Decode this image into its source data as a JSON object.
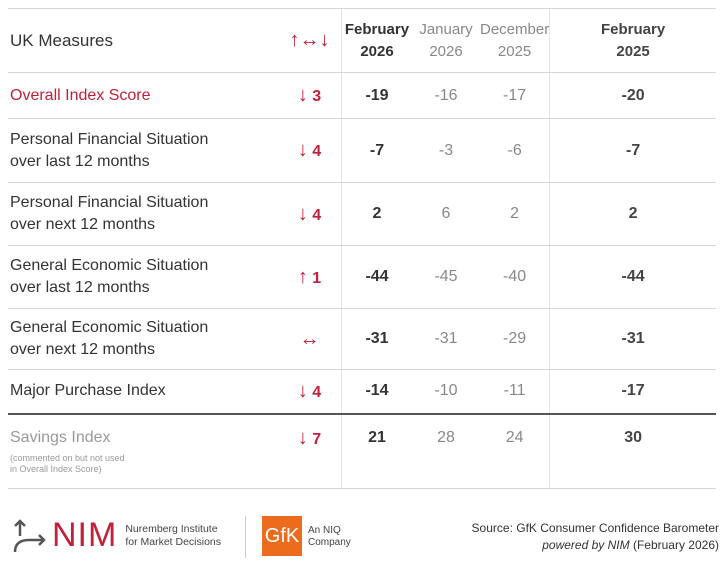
{
  "header": {
    "title": "UK Measures",
    "legend_arrows": "↑↔↓",
    "columns": [
      {
        "month": "February",
        "year": "2026"
      },
      {
        "month": "January",
        "year": "2026"
      },
      {
        "month": "December",
        "year": "2025"
      },
      {
        "month": "February",
        "year": "2025"
      }
    ]
  },
  "rows": [
    {
      "label1": "Overall Index Score",
      "label2": "",
      "arrow": "↓",
      "change": "3",
      "values": [
        "-19",
        "-16",
        "-17",
        "-20"
      ]
    },
    {
      "label1": "Personal Financial Situation",
      "label2": "over last 12 months",
      "arrow": "↓",
      "change": "4",
      "values": [
        "-7",
        "-3",
        "-6",
        "-7"
      ]
    },
    {
      "label1": "Personal Financial Situation",
      "label2": "over next 12 months",
      "arrow": "↓",
      "change": "4",
      "values": [
        "2",
        "6",
        "2",
        "2"
      ]
    },
    {
      "label1": "General Economic Situation",
      "label2": "over last 12 months",
      "arrow": "↑",
      "change": "1",
      "values": [
        "-44",
        "-45",
        "-40",
        "-44"
      ]
    },
    {
      "label1": "General Economic Situation",
      "label2": "over next 12 months",
      "arrow": "↔",
      "change": "",
      "values": [
        "-31",
        "-31",
        "-29",
        "-31"
      ]
    },
    {
      "label1": "Major Purchase Index",
      "label2": "",
      "arrow": "↓",
      "change": "4",
      "values": [
        "-14",
        "-10",
        "-11",
        "-17"
      ]
    },
    {
      "label1": "Savings Index",
      "label2": "",
      "note1": "(commented on but not used",
      "note2": "in Overall Index Score)",
      "arrow": "↓",
      "change": "7",
      "values": [
        "21",
        "28",
        "24",
        "30"
      ]
    }
  ],
  "footer": {
    "nim": "NIM",
    "nim_sub1": "Nuremberg Institute",
    "nim_sub2": "for Market Decisions",
    "gfk": "GfK",
    "niq1": "An NIQ",
    "niq2": "Company",
    "source": "Source: GfK Consumer Confidence Barometer",
    "powered": "powered by NIM",
    "powered_date": "(February 2026)"
  },
  "colors": {
    "accent": "#c0203a",
    "gfk": "#ec6b1d"
  }
}
